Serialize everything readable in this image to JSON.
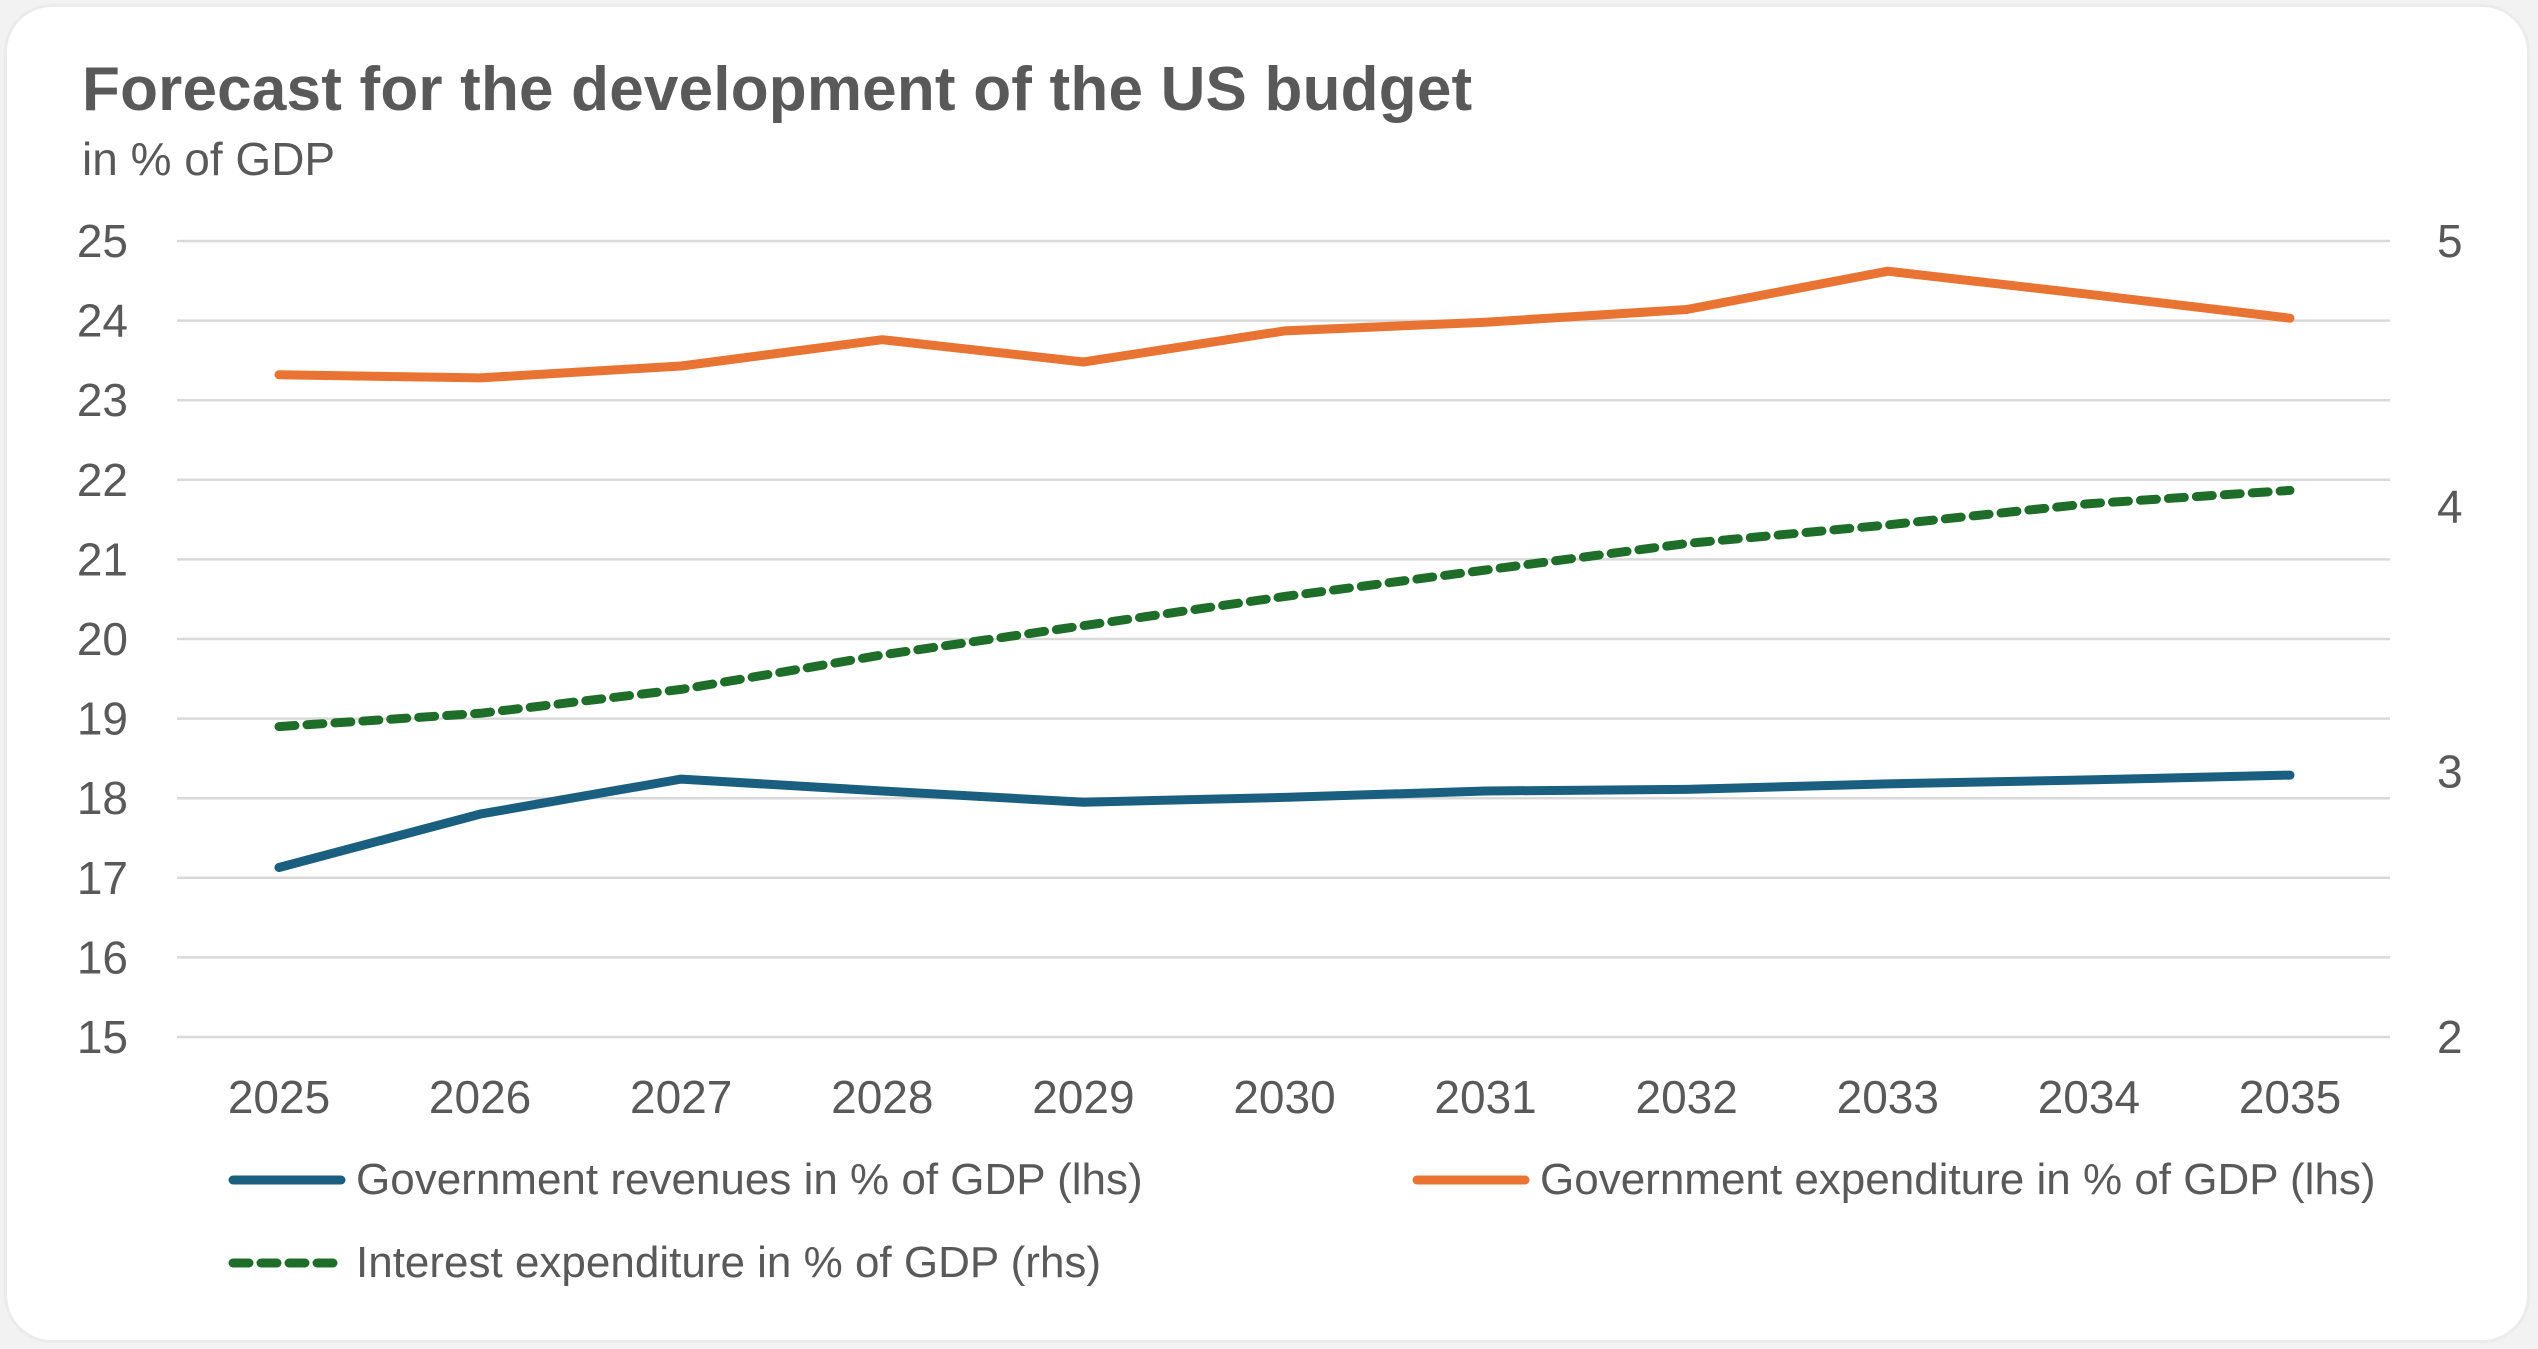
{
  "chart_data": {
    "type": "line",
    "title": "Forecast for the development of the US budget",
    "subtitle": "in % of GDP",
    "xlabel": "",
    "ylabel": "",
    "categories": [
      "2025",
      "2026",
      "2027",
      "2028",
      "2029",
      "2030",
      "2031",
      "2032",
      "2033",
      "2034",
      "2035"
    ],
    "y_left": {
      "range": [
        15,
        25
      ],
      "ticks": [
        "25",
        "24",
        "23",
        "22",
        "21",
        "20",
        "19",
        "18",
        "17",
        "16",
        "15"
      ]
    },
    "y_right": {
      "range": [
        2,
        5
      ],
      "ticks": [
        "5",
        "4",
        "3",
        "2"
      ]
    },
    "grid": true,
    "legend_position": "bottom",
    "series": [
      {
        "name": "Government revenues in % of GDP (lhs)",
        "axis": "left",
        "color": "#1a5f7f",
        "style": "solid",
        "values": [
          17.13,
          17.8,
          18.24,
          18.09,
          17.95,
          18.01,
          18.09,
          18.11,
          18.18,
          18.23,
          18.29
        ]
      },
      {
        "name": "Government expenditure in % of GDP (lhs)",
        "axis": "left",
        "color": "#e87333",
        "style": "solid",
        "values": [
          23.32,
          23.28,
          23.43,
          23.76,
          23.48,
          23.87,
          23.98,
          24.14,
          24.62,
          24.33,
          24.03
        ]
      },
      {
        "name": "Interest expenditure in % of GDP (rhs)",
        "axis": "right",
        "color": "#1e6e2a",
        "style": "dashed",
        "values": [
          3.17,
          3.22,
          3.31,
          3.44,
          3.55,
          3.66,
          3.76,
          3.86,
          3.93,
          4.01,
          4.06
        ]
      }
    ]
  }
}
